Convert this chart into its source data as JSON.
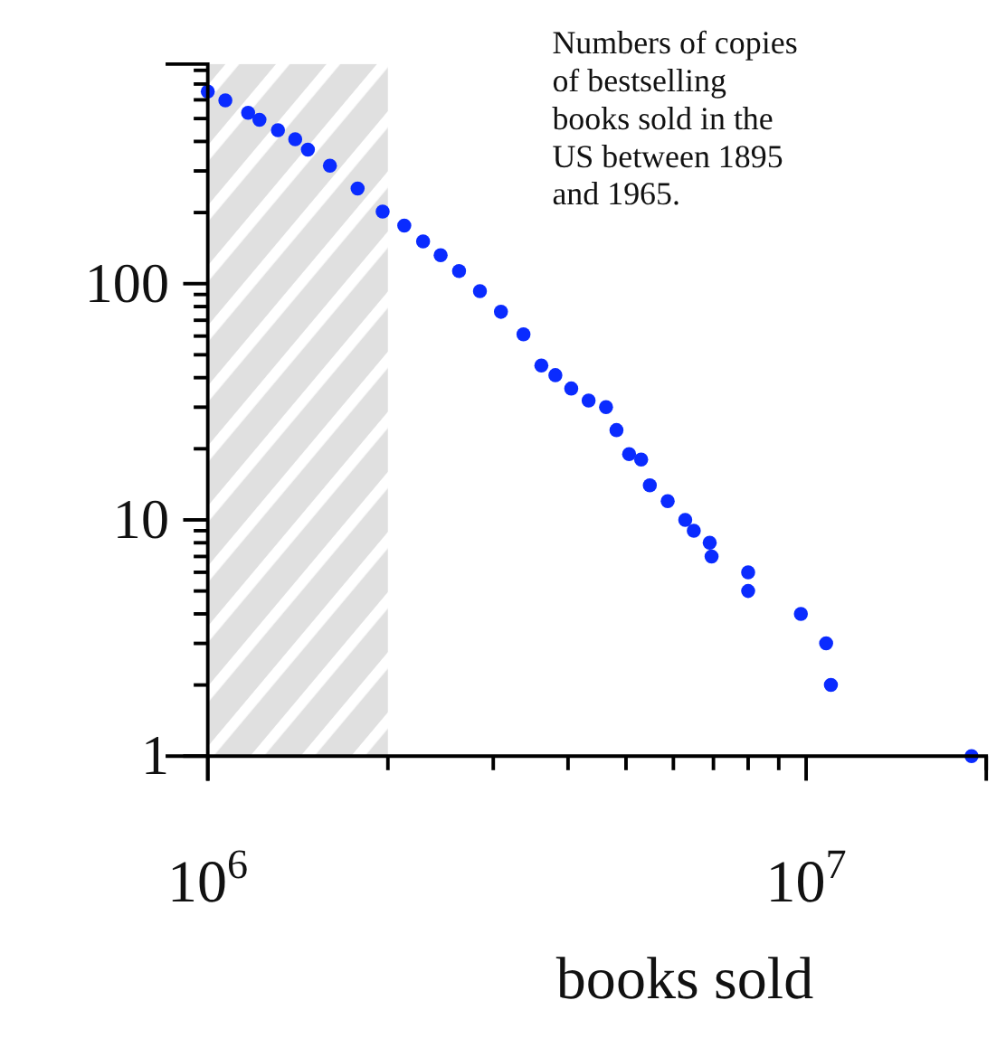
{
  "chart_data": {
    "type": "scatter",
    "xlabel": "books sold",
    "log": "xy",
    "grid": false,
    "marker": "circle",
    "annotations": [
      "Numbers of copies of bestselling books sold in the US between 1895 and 1965."
    ],
    "xlim": [
      1000000,
      20000000
    ],
    "ylim": [
      1,
      850
    ],
    "xticks": [
      {
        "value": 1000000,
        "label": "10$^{6}$"
      },
      {
        "value": 2000000,
        "label": null
      },
      {
        "value": 3000000,
        "label": null
      },
      {
        "value": 4000000,
        "label": null
      },
      {
        "value": 5000000,
        "label": null
      },
      {
        "value": 6000000,
        "label": null
      },
      {
        "value": 7000000,
        "label": null
      },
      {
        "value": 8000000,
        "label": null
      },
      {
        "value": 9000000,
        "label": null
      },
      {
        "value": 10000000,
        "label": "10$^{7}$"
      },
      {
        "value": 20000000,
        "label": null
      }
    ],
    "yticks": [
      1,
      {
        "value": 2,
        "label": null
      },
      {
        "value": 3,
        "label": null
      },
      {
        "value": 4,
        "label": null
      },
      {
        "value": 5,
        "label": null
      },
      {
        "value": 6,
        "label": null
      },
      {
        "value": 7,
        "label": null
      },
      {
        "value": 8,
        "label": null
      },
      {
        "value": 9,
        "label": null
      },
      10,
      {
        "value": 20,
        "label": null
      },
      {
        "value": 30,
        "label": null
      },
      {
        "value": 40,
        "label": null
      },
      {
        "value": 50,
        "label": null
      },
      {
        "value": 60,
        "label": null
      },
      {
        "value": 70,
        "label": null
      },
      {
        "value": 80,
        "label": null
      },
      {
        "value": 90,
        "label": null
      },
      100,
      {
        "value": 200,
        "label": null
      },
      {
        "value": 300,
        "label": null
      },
      {
        "value": 400,
        "label": null
      },
      {
        "value": 500,
        "label": null
      },
      {
        "value": 600,
        "label": null
      },
      {
        "value": 700,
        "label": null
      },
      {
        "value": 800,
        "label": null
      }
    ],
    "bands": [
      {
        "axis": "x",
        "from": 1000000,
        "to": 2000000,
        "color": "#e0e0e0"
      }
    ],
    "series": [
      {
        "color": "#0a2bff",
        "x": [
          1000000,
          1070000,
          1168000,
          1220000,
          1310000,
          1400000,
          1470000,
          1600000,
          1780000,
          1960000,
          2130000,
          2290000,
          2450000,
          2630000,
          2850000,
          3090000,
          3370000,
          3610000,
          3810000,
          4050000,
          4330000,
          4630000,
          4820000,
          5060000,
          5300000,
          5480000,
          5870000,
          6280000,
          6490000,
          6900000,
          6950000,
          8000000,
          8000000,
          9800000,
          10800000,
          11000000,
          18900000
        ],
        "values": [
          651,
          597,
          529,
          494,
          446,
          409,
          369,
          316,
          253,
          202,
          176,
          151,
          132,
          113,
          93,
          76,
          61,
          45,
          41,
          36,
          32,
          30,
          24,
          19,
          18,
          14,
          12,
          10,
          9,
          8,
          7,
          6,
          5,
          4,
          3,
          2,
          1
        ]
      }
    ]
  }
}
